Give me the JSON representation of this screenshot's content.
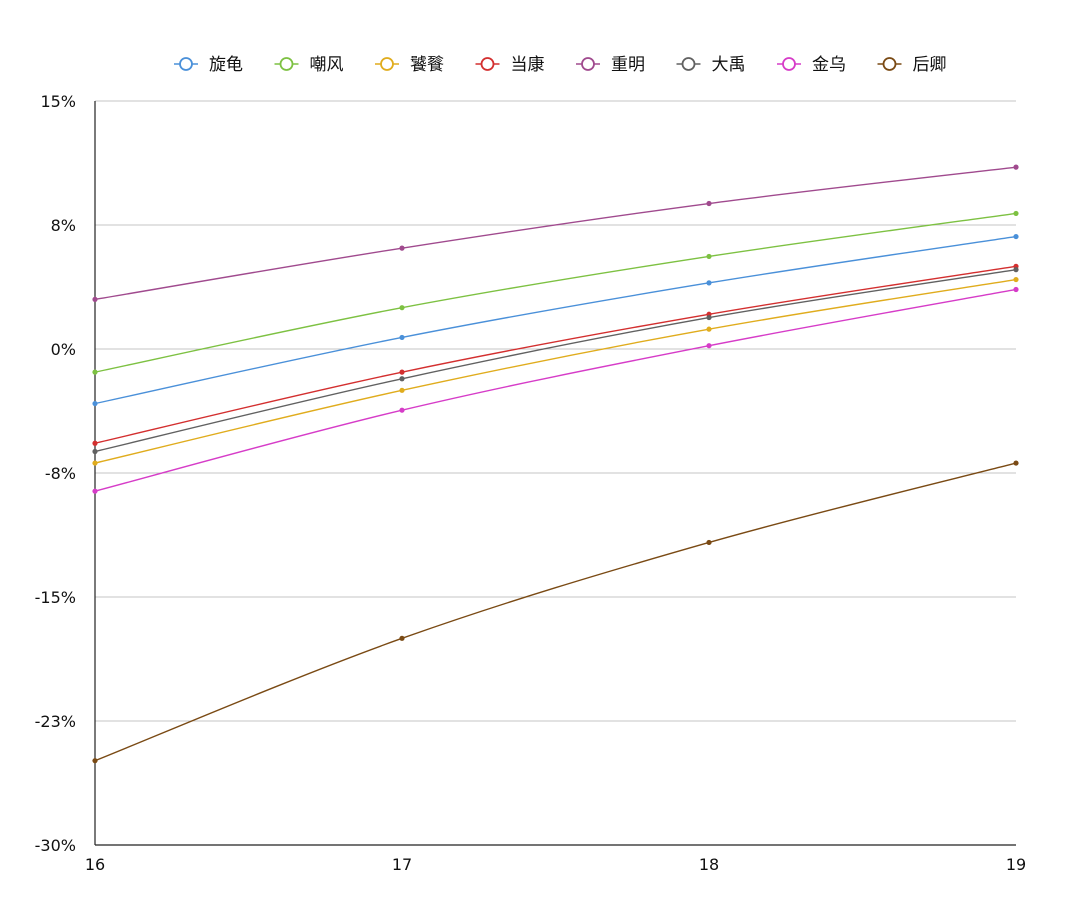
{
  "chart_data": {
    "type": "line",
    "x": [
      16,
      17,
      18,
      19
    ],
    "xticks": [
      "16",
      "17",
      "18",
      "19"
    ],
    "yticks": [
      "15%",
      "8%",
      "0%",
      "-8%",
      "-15%",
      "-23%",
      "-30%"
    ],
    "ylim": [
      -30,
      15
    ],
    "grid": true,
    "legend_position": "top",
    "series": [
      {
        "name": "旋龟",
        "color": "#4a90d9",
        "values": [
          -3.3,
          0.7,
          4.0,
          6.8
        ]
      },
      {
        "name": "嘲风",
        "color": "#7dc142",
        "values": [
          -1.4,
          2.5,
          5.6,
          8.2
        ]
      },
      {
        "name": "饕餮",
        "color": "#e0ac1d",
        "values": [
          -6.9,
          -2.5,
          1.2,
          4.2
        ]
      },
      {
        "name": "当康",
        "color": "#d32f2f",
        "values": [
          -5.7,
          -1.4,
          2.1,
          5.0
        ]
      },
      {
        "name": "重明",
        "color": "#a04a8e",
        "values": [
          3.0,
          6.1,
          8.8,
          11.0
        ]
      },
      {
        "name": "大禹",
        "color": "#616161",
        "values": [
          -6.2,
          -1.8,
          1.9,
          4.8
        ]
      },
      {
        "name": "金乌",
        "color": "#d63cc8",
        "values": [
          -8.6,
          -3.7,
          0.2,
          3.6
        ]
      },
      {
        "name": "后卿",
        "color": "#7a4a14",
        "values": [
          -24.9,
          -17.5,
          -11.7,
          -6.9
        ]
      }
    ]
  }
}
